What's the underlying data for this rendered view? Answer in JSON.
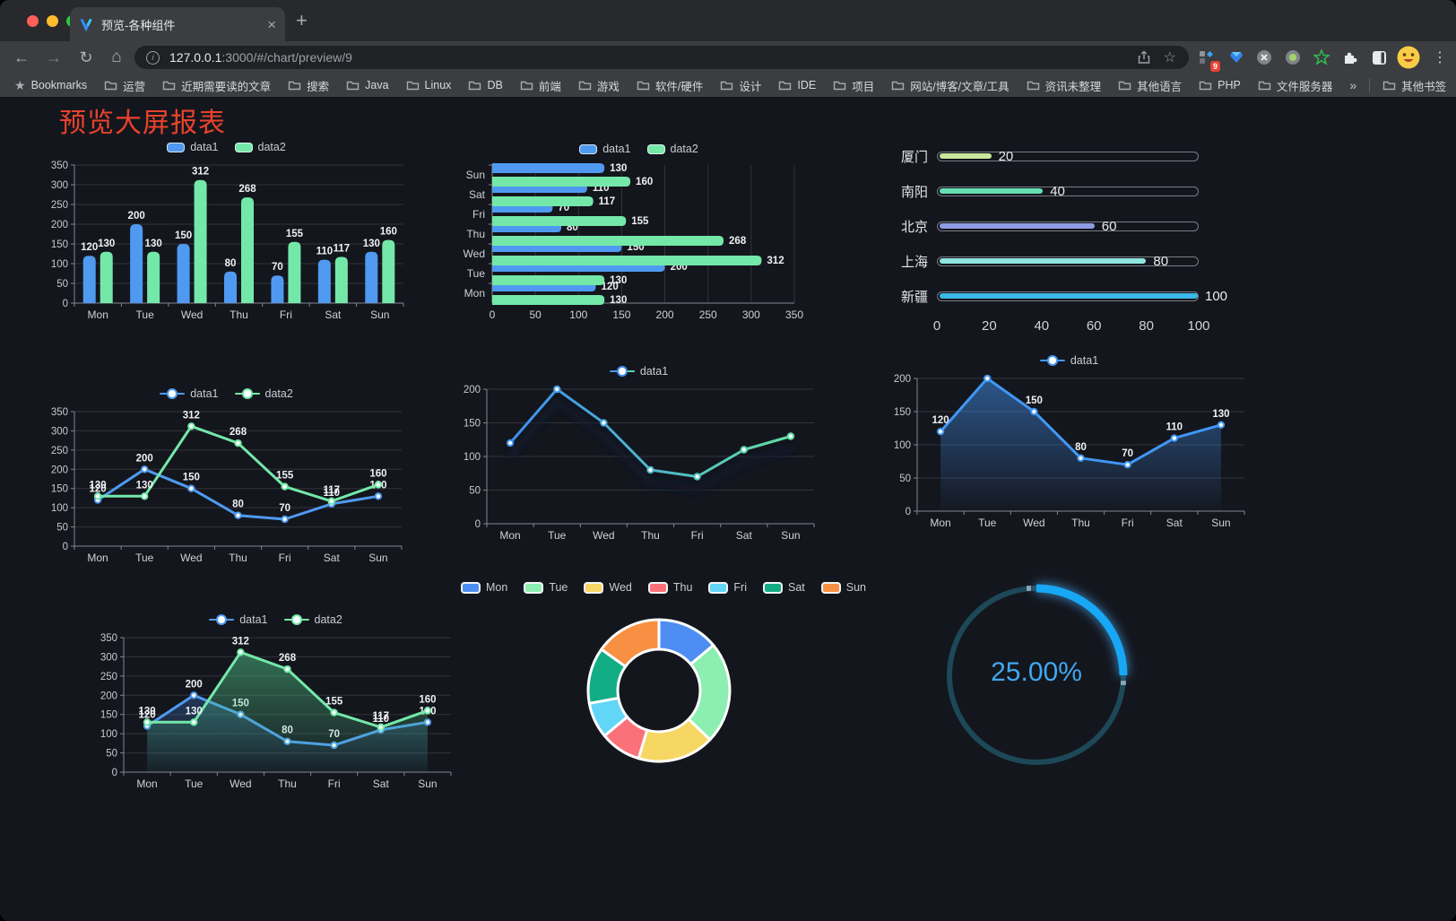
{
  "browser": {
    "tab_title": "预览-各种组件",
    "url_host": "127.0.0.1",
    "url_rest": ":3000/#/chart/preview/9",
    "extension_badge": "9",
    "bookmarks_label": "Bookmarks",
    "bookmarks": [
      "运营",
      "近期需要读的文章",
      "搜索",
      "Java",
      "Linux",
      "DB",
      "前端",
      "游戏",
      "软件/硬件",
      "设计",
      "IDE",
      "项目",
      "网站/博客/文章/工具",
      "资讯未整理",
      "其他语言",
      "PHP",
      "文件服务器"
    ],
    "other_bookmarks": "其他书签",
    "icons": {
      "close": "×",
      "plus": "+",
      "back": "←",
      "forward": "→",
      "reload": "↻",
      "home": "⌂",
      "star": "☆",
      "bookmarks_star": "★",
      "kebab": "⋮",
      "info": "i",
      "more": "»"
    }
  },
  "page": {
    "title": "预览大屏报表",
    "title_color": "#e9422c",
    "background": "#14161d"
  },
  "chart_data": [
    {
      "type": "bar",
      "legend_pos": "top",
      "categories": [
        "Mon",
        "Tue",
        "Wed",
        "Thu",
        "Fri",
        "Sat",
        "Sun"
      ],
      "series": [
        {
          "name": "data1",
          "color": "#4f9af0",
          "values": [
            120,
            200,
            150,
            80,
            70,
            110,
            130
          ]
        },
        {
          "name": "data2",
          "color": "#74e8a9",
          "values": [
            130,
            130,
            312,
            268,
            155,
            117,
            160
          ]
        }
      ],
      "ylim": [
        0,
        350
      ],
      "ytick": 50,
      "labels": true
    },
    {
      "type": "hbar",
      "legend_pos": "top",
      "categories": [
        "Mon",
        "Tue",
        "Wed",
        "Thu",
        "Fri",
        "Sat",
        "Sun"
      ],
      "series": [
        {
          "name": "data1",
          "color": "#4f9af0",
          "values": [
            120,
            200,
            150,
            80,
            70,
            110,
            130
          ]
        },
        {
          "name": "data2",
          "color": "#74e8a9",
          "values": [
            130,
            130,
            312,
            268,
            155,
            117,
            160
          ]
        }
      ],
      "xlim": [
        0,
        350
      ],
      "xtick": 50,
      "labels": true
    },
    {
      "type": "progress",
      "categories": [
        "厦门",
        "南阳",
        "北京",
        "上海",
        "新疆"
      ],
      "values": [
        20,
        40,
        60,
        80,
        100
      ],
      "colors": [
        "#c9e79b",
        "#66dfb2",
        "#8f9ce5",
        "#90e5e0",
        "#3ab8e8"
      ],
      "xlim": [
        0,
        100
      ],
      "xticks": [
        0,
        20,
        40,
        60,
        80,
        100
      ]
    },
    {
      "type": "line",
      "categories": [
        "Mon",
        "Tue",
        "Wed",
        "Thu",
        "Fri",
        "Sat",
        "Sun"
      ],
      "series": [
        {
          "name": "data1",
          "color": "#4f9af0",
          "values": [
            120,
            200,
            150,
            80,
            70,
            110,
            130
          ]
        },
        {
          "name": "data2",
          "color": "#74e8a9",
          "values": [
            130,
            130,
            312,
            268,
            155,
            117,
            160
          ]
        }
      ],
      "ylim": [
        0,
        350
      ],
      "ytick": 50,
      "labels": true
    },
    {
      "type": "line",
      "shadow": true,
      "categories": [
        "Mon",
        "Tue",
        "Wed",
        "Thu",
        "Fri",
        "Sat",
        "Sun"
      ],
      "series": [
        {
          "name": "data1",
          "color": "#3e8ef2",
          "gradient": [
            "#3e8ef2",
            "#5fdfa2"
          ],
          "values": [
            120,
            200,
            150,
            80,
            70,
            110,
            130
          ]
        }
      ],
      "ylim": [
        0,
        200
      ],
      "ytick": 50,
      "labels": false
    },
    {
      "type": "line",
      "categories": [
        "Mon",
        "Tue",
        "Wed",
        "Thu",
        "Fri",
        "Sat",
        "Sun"
      ],
      "series": [
        {
          "name": "data1",
          "color": "#4097f5",
          "area": [
            "rgba(64,140,230,0.55)",
            "rgba(64,140,230,0.02)"
          ],
          "values": [
            120,
            200,
            150,
            80,
            70,
            110,
            130
          ]
        }
      ],
      "ylim": [
        0,
        200
      ],
      "ytick": 50,
      "labels": true
    },
    {
      "type": "line",
      "categories": [
        "Mon",
        "Tue",
        "Wed",
        "Thu",
        "Fri",
        "Sat",
        "Sun"
      ],
      "series": [
        {
          "name": "data1",
          "color": "#4f9af0",
          "area": [
            "rgba(60,120,200,0.35)",
            "rgba(60,120,200,0.03)"
          ],
          "values": [
            120,
            200,
            150,
            80,
            70,
            110,
            130
          ]
        },
        {
          "name": "data2",
          "color": "#74e8a9",
          "area": [
            "rgba(80,200,140,0.50)",
            "rgba(80,200,140,0.04)"
          ],
          "values": [
            130,
            130,
            312,
            268,
            155,
            117,
            160
          ]
        }
      ],
      "ylim": [
        0,
        350
      ],
      "ytick": 50,
      "labels": true
    },
    {
      "type": "donut",
      "categories": [
        "Mon",
        "Tue",
        "Wed",
        "Thu",
        "Fri",
        "Sat",
        "Sun"
      ],
      "values": [
        120,
        200,
        150,
        80,
        70,
        110,
        130
      ],
      "colors": [
        "#4e8ef2",
        "#8cefb1",
        "#f6d763",
        "#fb7179",
        "#61d6f6",
        "#12ad85",
        "#f89043"
      ]
    },
    {
      "type": "gauge",
      "value": "25.00%",
      "percent": 25,
      "color": "#17a8f5",
      "track": "#1d4857"
    }
  ]
}
